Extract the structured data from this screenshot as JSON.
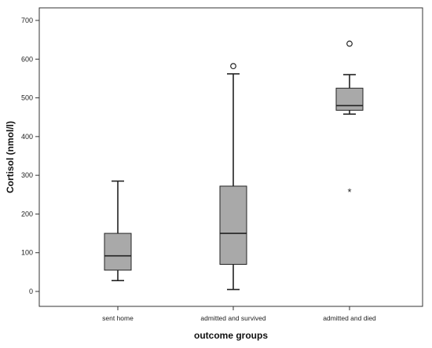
{
  "chart_data": {
    "type": "boxplot",
    "xlabel": "outcome groups",
    "ylabel": "Cortisol (nmol/l)",
    "ylim": [
      -30,
      750
    ],
    "yticks": [
      0,
      100,
      200,
      300,
      400,
      500,
      600,
      700
    ],
    "categories": [
      "sent home",
      "admitted and survived",
      "admitted and died"
    ],
    "boxes": [
      {
        "category": "sent home",
        "whisker_low": 28,
        "q1": 55,
        "median": 92,
        "q3": 150,
        "whisker_high": 285,
        "outliers": [],
        "extremes": []
      },
      {
        "category": "admitted and survived",
        "whisker_low": 5,
        "q1": 70,
        "median": 150,
        "q3": 272,
        "whisker_high": 562,
        "outliers": [
          582
        ],
        "extremes": []
      },
      {
        "category": "admitted and died",
        "whisker_low": 458,
        "q1": 468,
        "median": 480,
        "q3": 525,
        "whisker_high": 560,
        "outliers": [
          640
        ],
        "extremes": [
          260
        ]
      }
    ],
    "box_fill": "#a9a9a9",
    "stroke_color": "#222222",
    "grid": false,
    "legend": "none"
  }
}
